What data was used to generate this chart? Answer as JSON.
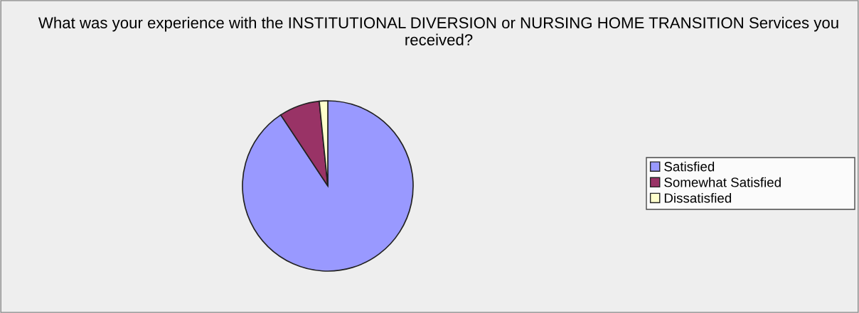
{
  "chart_data": {
    "type": "pie",
    "title": "What was your experience with the INSTITUTIONAL DIVERSION or NURSING HOME TRANSITION Services you received?",
    "categories": [
      "Satisfied",
      "Somewhat Satisfied",
      "Dissatisfied"
    ],
    "values": [
      90.7,
      7.7,
      1.6
    ],
    "colors": [
      "#9999ff",
      "#993366",
      "#ffffcc"
    ],
    "legend": "right"
  }
}
